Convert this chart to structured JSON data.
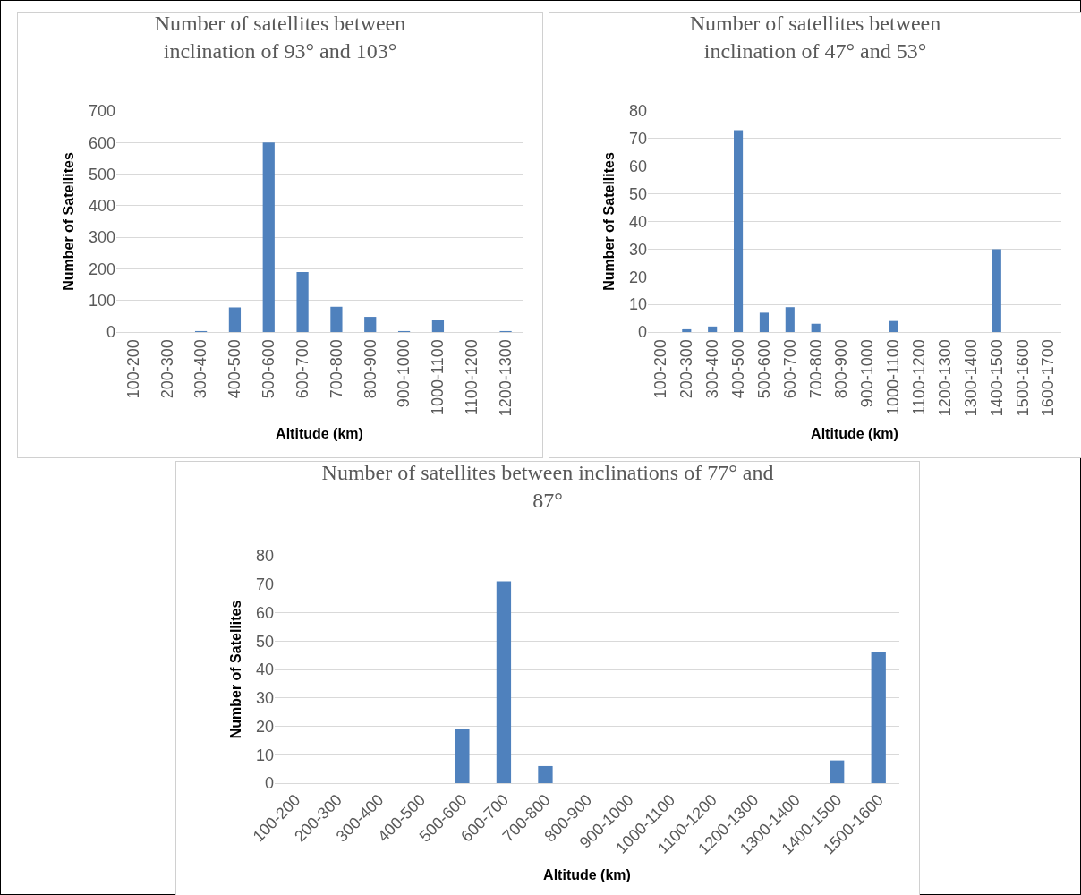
{
  "chart_data": [
    {
      "type": "bar",
      "title": "Number of satellites between inclination of 93° and 103°",
      "xlabel": "Altitude (km)",
      "ylabel": "Number of Satellites",
      "categories": [
        "100-200",
        "200-300",
        "300-400",
        "400-500",
        "500-600",
        "600-700",
        "700-800",
        "800-900",
        "900-1000",
        "1000-1100",
        "1100-1200",
        "1200-1300"
      ],
      "values": [
        0,
        0,
        3,
        78,
        600,
        190,
        80,
        48,
        3,
        37,
        0,
        3
      ],
      "color": "#4f81bd",
      "ylim": [
        0,
        700
      ],
      "yticks": [
        0,
        100,
        200,
        300,
        400,
        500,
        600,
        700
      ],
      "grid": "y"
    },
    {
      "type": "bar",
      "title": "Number of satellites between inclination of 47° and 53°",
      "xlabel": "Altitude (km)",
      "ylabel": "Number of Satellites",
      "categories": [
        "100-200",
        "200-300",
        "300-400",
        "400-500",
        "500-600",
        "600-700",
        "700-800",
        "800-900",
        "900-1000",
        "1000-1100",
        "1100-1200",
        "1200-1300",
        "1300-1400",
        "1400-1500",
        "1500-1600",
        "1600-1700"
      ],
      "values": [
        0,
        1,
        2,
        73,
        7,
        9,
        3,
        0,
        0,
        4,
        0,
        0,
        0,
        30,
        0,
        0
      ],
      "color": "#4f81bd",
      "ylim": [
        0,
        80
      ],
      "yticks": [
        0,
        10,
        20,
        30,
        40,
        50,
        60,
        70,
        80
      ],
      "grid": "y"
    },
    {
      "type": "bar",
      "title": "Number of satellites between inclinations of 77° and 87°",
      "xlabel": "Altitude (km)",
      "ylabel": "Number of Satellites",
      "categories": [
        "100-200",
        "200-300",
        "300-400",
        "400-500",
        "500-600",
        "600-700",
        "700-800",
        "800-900",
        "900-1000",
        "1000-1100",
        "1100-1200",
        "1200-1300",
        "1300-1400",
        "1400-1500",
        "1500-1600"
      ],
      "values": [
        0,
        0,
        0,
        0,
        19,
        71,
        6,
        0,
        0,
        0,
        0,
        0,
        0,
        8,
        46
      ],
      "color": "#4f81bd",
      "ylim": [
        0,
        80
      ],
      "yticks": [
        0,
        10,
        20,
        30,
        40,
        50,
        60,
        70,
        80
      ],
      "grid": "y"
    }
  ]
}
